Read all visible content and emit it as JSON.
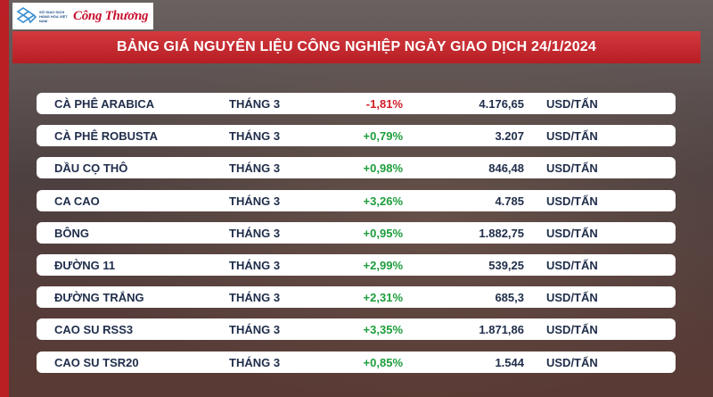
{
  "header": {
    "logo_small_text": "SỞ GIAO DỊCH HÀNG HÓA VIỆT NAM",
    "logo_brand": "Công Thương",
    "title": "BẢNG GIÁ NGUYÊN LIỆU CÔNG NGHIỆP NGÀY GIAO DỊCH 24/1/2024"
  },
  "colors": {
    "accent_red": "#b71e24",
    "negative": "#d21e2a",
    "positive": "#1e9e3c"
  },
  "rows": [
    {
      "name": "CÀ PHÊ ARABICA",
      "month": "THÁNG 3",
      "change": "-1,81%",
      "direction": "neg",
      "price": "4.176,65",
      "unit": "USD/TẤN"
    },
    {
      "name": "CÀ PHÊ ROBUSTA",
      "month": "THÁNG 3",
      "change": "+0,79%",
      "direction": "pos",
      "price": "3.207",
      "unit": "USD/TẤN"
    },
    {
      "name": "DẦU CỌ THÔ",
      "month": "THÁNG 3",
      "change": "+0,98%",
      "direction": "pos",
      "price": "846,48",
      "unit": "USD/TẤN"
    },
    {
      "name": "CA CAO",
      "month": "THÁNG 3",
      "change": "+3,26%",
      "direction": "pos",
      "price": "4.785",
      "unit": "USD/TẤN"
    },
    {
      "name": "BÔNG",
      "month": "THÁNG 3",
      "change": "+0,95%",
      "direction": "pos",
      "price": "1.882,75",
      "unit": "USD/TẤN"
    },
    {
      "name": "ĐƯỜNG 11",
      "month": "THÁNG 3",
      "change": "+2,99%",
      "direction": "pos",
      "price": "539,25",
      "unit": "USD/TẤN"
    },
    {
      "name": "ĐƯỜNG TRẮNG",
      "month": "THÁNG 3",
      "change": "+2,31%",
      "direction": "pos",
      "price": "685,3",
      "unit": "USD/TẤN"
    },
    {
      "name": "CAO SU RSS3",
      "month": "THÁNG 3",
      "change": "+3,35%",
      "direction": "pos",
      "price": "1.871,86",
      "unit": "USD/TẤN"
    },
    {
      "name": "CAO SU TSR20",
      "month": "THÁNG 3",
      "change": "+0,85%",
      "direction": "pos",
      "price": "1.544",
      "unit": "USD/TẤN"
    }
  ]
}
